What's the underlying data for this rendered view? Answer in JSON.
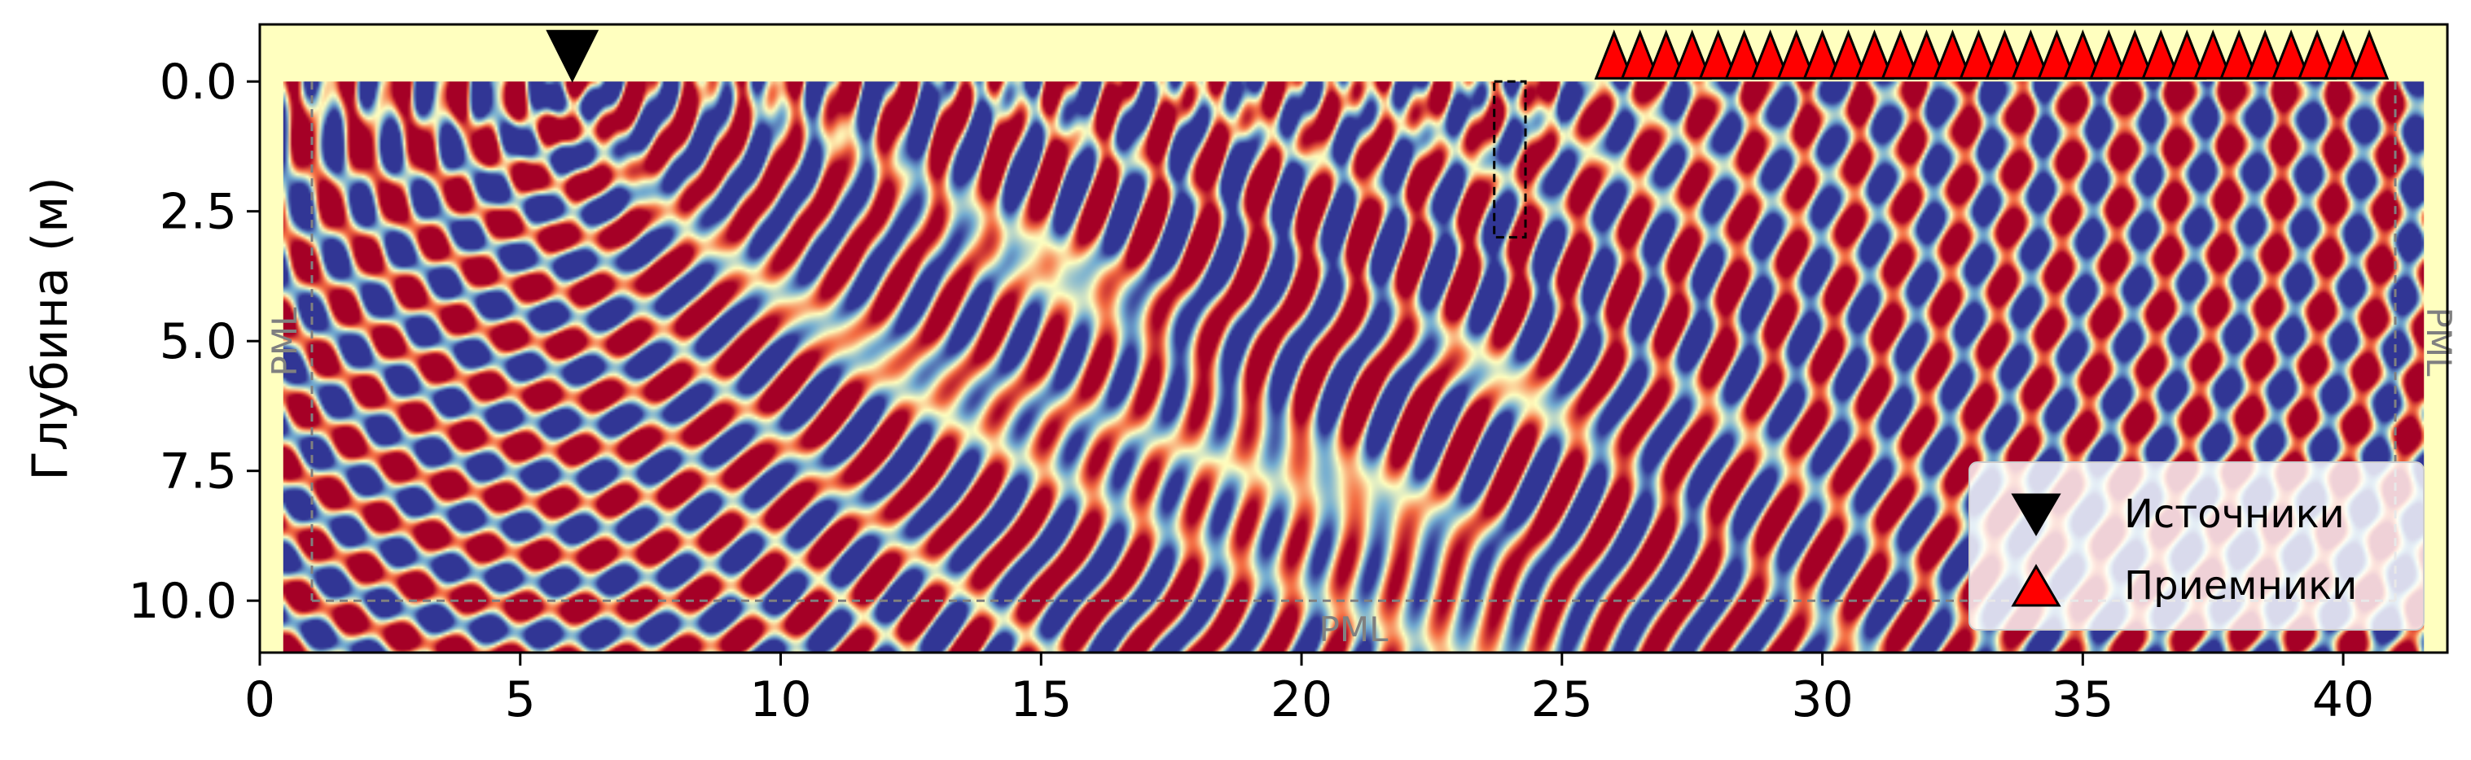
{
  "chart_data": {
    "type": "heatmap",
    "title": "",
    "xlabel": "",
    "ylabel": "Глубина (м)",
    "xlim": [
      0,
      42
    ],
    "ylim": [
      11,
      -1.1
    ],
    "x_ticks": [
      "0",
      "5",
      "10",
      "15",
      "20",
      "25",
      "30",
      "35",
      "40"
    ],
    "x_tick_values": [
      0,
      5,
      10,
      15,
      20,
      25,
      30,
      35,
      40
    ],
    "y_ticks": [
      "0.0",
      "2.5",
      "5.0",
      "7.5",
      "10.0"
    ],
    "y_tick_values": [
      0,
      2.5,
      5,
      7.5,
      10
    ],
    "colormap": [
      "#313695",
      "#74add1",
      "#ffffbf",
      "#f46d43",
      "#a50026"
    ],
    "wavefield_extent": {
      "x": [
        0.45,
        41.55
      ],
      "depth": [
        0,
        11
      ]
    },
    "pml": {
      "label_left": "PML",
      "label_right": "PML",
      "label_bottom": "PML",
      "inner_boundary": {
        "x": [
          1,
          41
        ],
        "depth_max": 10
      },
      "line_color": "#808080"
    },
    "sources": {
      "legend_label": "Источники",
      "color": "#000000",
      "points": [
        {
          "x": 6,
          "depth": -0.5
        }
      ]
    },
    "receivers": {
      "legend_label": "Приемники",
      "color": "#ff0000",
      "x_start": 26,
      "x_end": 40.5,
      "count": 30,
      "depth": -0.5
    },
    "highlight_box": {
      "x": [
        23.7,
        24.3
      ],
      "depth": [
        0,
        3
      ]
    },
    "legend_position": "lower-right"
  }
}
